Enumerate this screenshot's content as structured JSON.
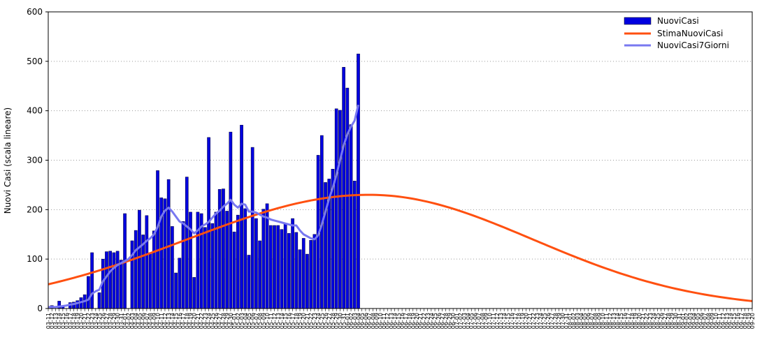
{
  "chart_data": {
    "type": "bar",
    "ylabel": "Nuovi Casi (scala lineare)",
    "ylim": [
      0,
      600
    ],
    "yticks": [
      0,
      100,
      200,
      300,
      400,
      500,
      600
    ],
    "grid": true,
    "legend_position": "top-right",
    "x_start": "03-11",
    "x_end": "09-20",
    "colors": {
      "bars": "#0000e0",
      "estimate": "#ff5010",
      "avg7": "#7878f0"
    },
    "series": [
      {
        "name": "NuoviCasi",
        "kind": "bar",
        "values": [
          0,
          6,
          0,
          15,
          6,
          0,
          12,
          13,
          16,
          22,
          28,
          65,
          113,
          0,
          32,
          100,
          115,
          116,
          113,
          116,
          98,
          192,
          0,
          137,
          158,
          199,
          149,
          188,
          113,
          157,
          279,
          224,
          222,
          261,
          166,
          72,
          102,
          176,
          266,
          195,
          63,
          195,
          192,
          164,
          346,
          172,
          195,
          241,
          242,
          197,
          357,
          155,
          189,
          371,
          202,
          108,
          326,
          182,
          137,
          201,
          212,
          168,
          168,
          168,
          160,
          172,
          152,
          182,
          154,
          119,
          142,
          110,
          138,
          150,
          310,
          350,
          255,
          262,
          282,
          404,
          401,
          488,
          446,
          372,
          258,
          515
        ]
      },
      {
        "name": "StimaNuoviCasi",
        "kind": "line",
        "peak_date": "06-07",
        "peak_value": 230,
        "start_value": 49,
        "end_value": 15
      },
      {
        "name": "NuoviCasi7Giorni",
        "kind": "line",
        "values": [
          3,
          3,
          3,
          4,
          5,
          6,
          8,
          9,
          11,
          13,
          15,
          18,
          30,
          35,
          38,
          55,
          65,
          75,
          82,
          88,
          92,
          96,
          100,
          108,
          118,
          124,
          130,
          137,
          142,
          150,
          165,
          186,
          198,
          204,
          196,
          186,
          176,
          172,
          166,
          160,
          152,
          158,
          166,
          170,
          175,
          184,
          192,
          198,
          206,
          212,
          220,
          210,
          204,
          212,
          210,
          196,
          196,
          194,
          190,
          186,
          184,
          180,
          178,
          176,
          174,
          172,
          170,
          168,
          168,
          158,
          150,
          146,
          142,
          140,
          148,
          170,
          196,
          222,
          244,
          270,
          300,
          330,
          352,
          368,
          380,
          412
        ]
      }
    ]
  }
}
